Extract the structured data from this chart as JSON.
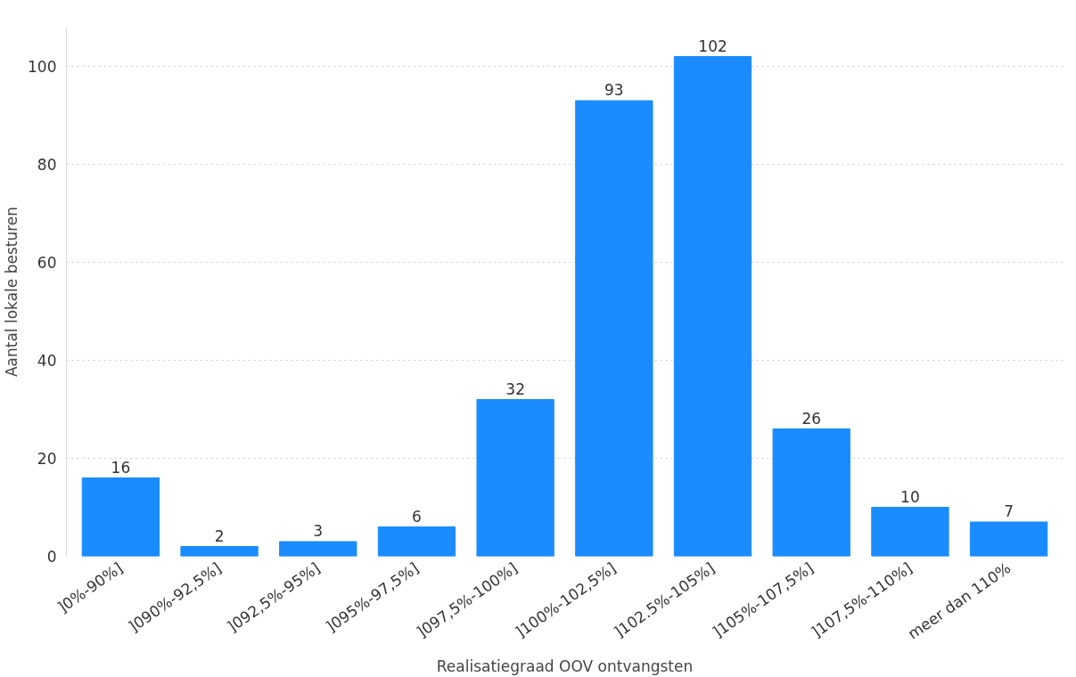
{
  "chart_data": {
    "type": "bar",
    "xlabel": "Realisatiegraad OOV ontvangsten",
    "ylabel": "Aantal lokale besturen",
    "categories": [
      "]0%-90%]",
      "]090%-92,5%]",
      "]092,5%-95%]",
      "]095%-97,5%]",
      "]097,5%-100%]",
      "]100%-102,5%]",
      "]102.5%-105%]",
      "]105%-107,5%]",
      "]107,5%-110%]",
      "meer dan 110%"
    ],
    "values": [
      16,
      2,
      3,
      6,
      32,
      93,
      102,
      26,
      10,
      7
    ],
    "color": "#1a8cff",
    "ylim": [
      0,
      108
    ],
    "yticks": [
      0,
      20,
      40,
      60,
      80,
      100
    ],
    "grid": "y",
    "data_labels": true
  }
}
